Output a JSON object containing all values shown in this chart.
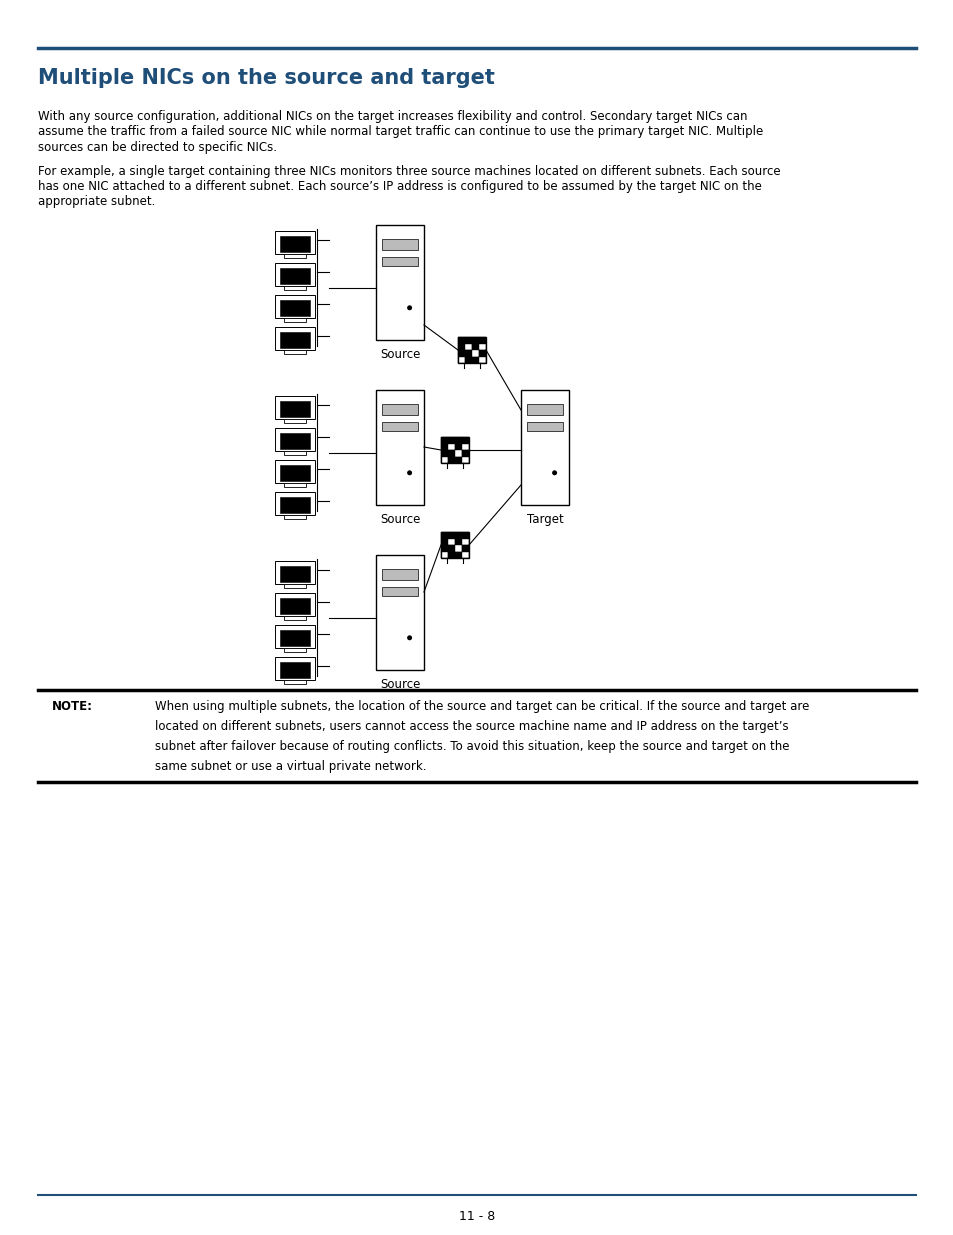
{
  "title": "Multiple NICs on the source and target",
  "title_color": "#1f4e79",
  "title_fontsize": 15,
  "body_color": "#000000",
  "background_color": "#ffffff",
  "top_rule_color": "#1f4e79",
  "page_number": "11 - 8",
  "para1_lines": [
    "With any source configuration, additional NICs on the target increases flexibility and control. Secondary target NICs can",
    "assume the traffic from a failed source NIC while normal target traffic can continue to use the primary target NIC. Multiple",
    "sources can be directed to specific NICs."
  ],
  "para2_lines": [
    "For example, a single target containing three NICs monitors three source machines located on different subnets. Each source",
    "has one NIC attached to a different subnet. Each source’s IP address is configured to be assumed by the target NIC on the",
    "appropriate subnet."
  ],
  "note_label": "NOTE:",
  "note_lines": [
    "When using multiple subnets, the location of the source and target can be critical. If the source and target are",
    "located on different subnets, users cannot access the source machine name and IP address on the target’s",
    "subnet after failover because of routing conflicts. To avoid this situation, keep the source and target on the",
    "same subnet or use a virtual private network."
  ],
  "page_number_text": "11 - 8",
  "text_fontsize": 8.5,
  "note_fontsize": 8.5
}
